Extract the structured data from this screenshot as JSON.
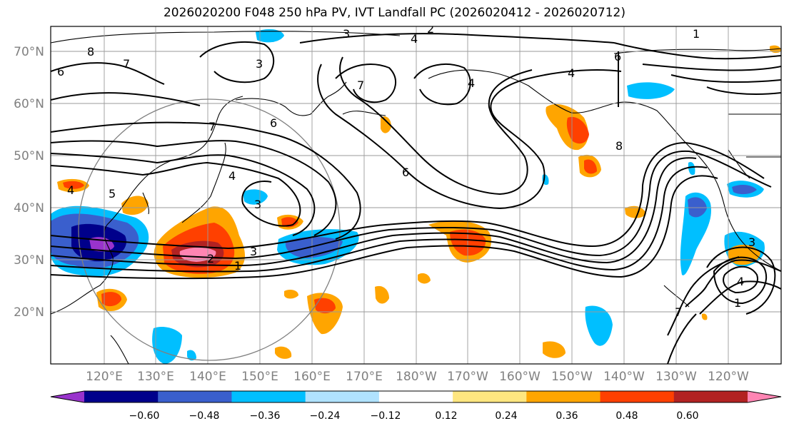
{
  "title": "2026020200 F048 250 hPa PV, IVT Landfall PC (2026020412 - 2026020712)",
  "map": {
    "projection": "PlateCarree (central lon 180)",
    "lon_range": [
      110,
      -110
    ],
    "lat_range": [
      10,
      75
    ],
    "lat_ticks": [
      "70°N",
      "60°N",
      "50°N",
      "40°N",
      "30°N",
      "20°N"
    ],
    "lon_ticks": [
      "120°E",
      "130°E",
      "140°E",
      "150°E",
      "160°E",
      "170°E",
      "180°W",
      "170°W",
      "160°W",
      "150°W",
      "140°W",
      "130°W",
      "120°W"
    ],
    "contour_labels": [
      "3",
      "4",
      "2",
      "1",
      "8",
      "7",
      "6",
      "3",
      "7",
      "4",
      "6",
      "4",
      "8",
      "6",
      "7",
      "4",
      "5",
      "4",
      "3",
      "3",
      "2",
      "1",
      "6",
      "3",
      "4",
      "7",
      "1"
    ]
  },
  "colorbar": {
    "ticks": [
      "−0.60",
      "−0.48",
      "−0.36",
      "−0.24",
      "−0.12",
      "0.12",
      "0.24",
      "0.36",
      "0.48",
      "0.60"
    ],
    "colors": [
      "#9933cc",
      "#00008b",
      "#3a5fcd",
      "#00bfff",
      "#b0e2ff",
      "#ffffff",
      "#ffe680",
      "#ffa500",
      "#ff4000",
      "#b22222",
      "#ff85b3"
    ]
  }
}
